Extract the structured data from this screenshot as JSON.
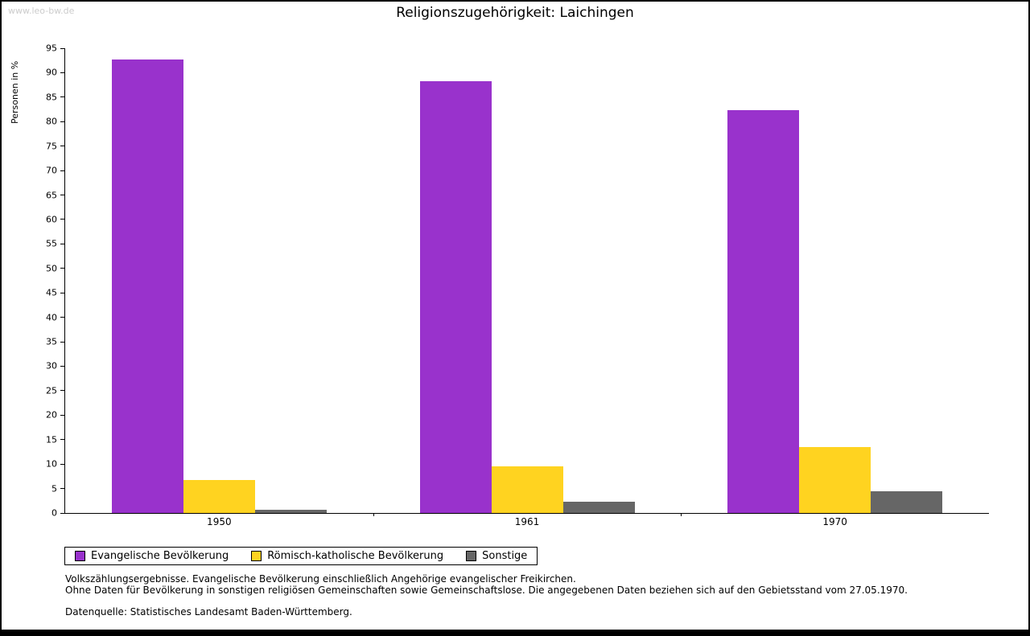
{
  "watermark": "www.leo-bw.de",
  "chart_data": {
    "type": "bar",
    "title": "Religionszugehörigkeit: Laichingen",
    "ylabel": "Personen in %",
    "xlabel": "",
    "ylim": [
      0,
      95
    ],
    "ytick_step": 5,
    "grid": false,
    "legend_position": "bottom",
    "categories": [
      "1950",
      "1961",
      "1970"
    ],
    "series": [
      {
        "name": "Evangelische Bevölkerung",
        "color": "#9932cc",
        "values": [
          92.7,
          88.3,
          82.3
        ]
      },
      {
        "name": "Römisch-katholische Bevölkerung",
        "color": "#ffd320",
        "values": [
          6.7,
          9.6,
          13.4
        ]
      },
      {
        "name": "Sonstige",
        "color": "#666666",
        "values": [
          0.7,
          2.3,
          4.4
        ]
      }
    ]
  },
  "footnotes": {
    "line1": "Volkszählungsergebnisse. Evangelische Bevölkerung einschließlich Angehörige evangelischer Freikirchen.",
    "line2": "Ohne Daten für Bevölkerung in sonstigen religiösen Gemeinschaften sowie Gemeinschaftslose. Die angegebenen Daten beziehen sich auf den Gebietsstand vom 27.05.1970.",
    "line3": "Datenquelle: Statistisches Landesamt Baden-Württemberg."
  }
}
